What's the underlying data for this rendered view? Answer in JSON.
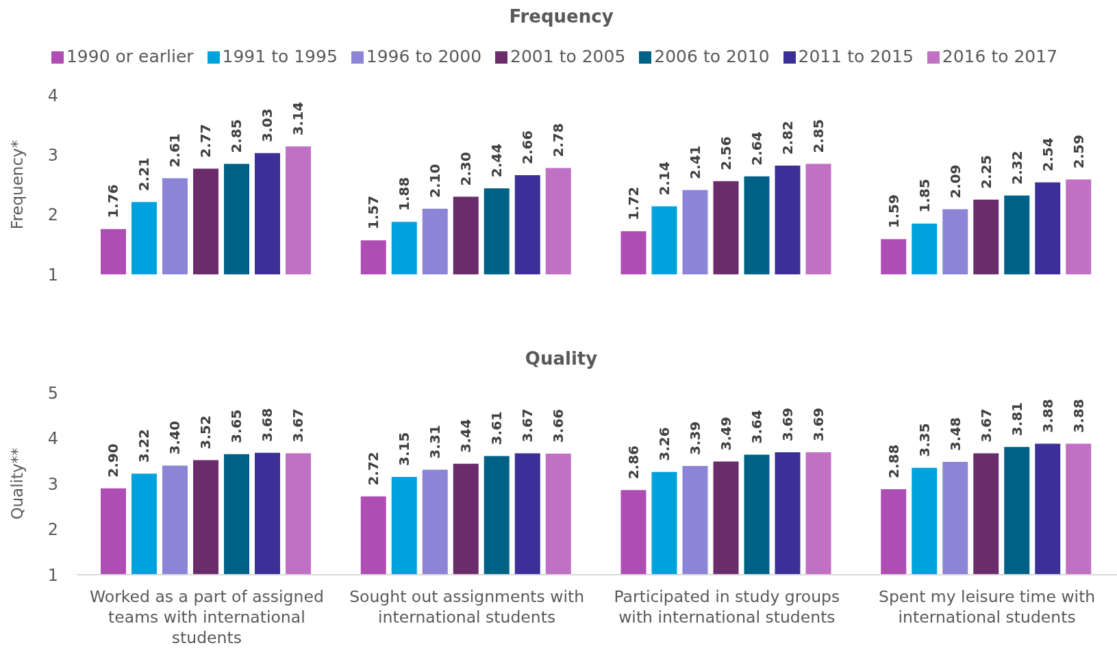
{
  "chart_data": [
    {
      "type": "bar",
      "title": "Frequency",
      "ylabel": "Frequency*",
      "categories": [
        null,
        null,
        null,
        null
      ],
      "series": [
        {
          "name": "1990 or earlier",
          "color": "#ae4db3",
          "values": [
            1.76,
            1.57,
            1.72,
            1.59
          ],
          "value_labels": [
            "1.76",
            "1.57",
            "1.72",
            "1.59"
          ]
        },
        {
          "name": "1991 to 1995",
          "color": "#00a2de",
          "values": [
            2.21,
            1.88,
            2.14,
            1.85
          ],
          "value_labels": [
            "2.21",
            "1.88",
            "2.14",
            "1.85"
          ]
        },
        {
          "name": "1996 to 2000",
          "color": "#8b84d7",
          "values": [
            2.61,
            2.1,
            2.41,
            2.09
          ],
          "value_labels": [
            "2.61",
            "2.10",
            "2.41",
            "2.09"
          ]
        },
        {
          "name": "2001 to 2005",
          "color": "#6a2c6b",
          "values": [
            2.77,
            2.3,
            2.56,
            2.25
          ],
          "value_labels": [
            "2.77",
            "2.30",
            "2.56",
            "2.25"
          ]
        },
        {
          "name": "2006 to 2010",
          "color": "#006186",
          "values": [
            2.85,
            2.44,
            2.64,
            2.32
          ],
          "value_labels": [
            "2.85",
            "2.44",
            "2.64",
            "2.32"
          ]
        },
        {
          "name": "2011 to 2015",
          "color": "#3c3098",
          "values": [
            3.03,
            2.66,
            2.82,
            2.54
          ],
          "value_labels": [
            "3.03",
            "2.66",
            "2.82",
            "2.54"
          ]
        },
        {
          "name": "2016 to 2017",
          "color": "#c071c4",
          "values": [
            3.14,
            2.78,
            2.85,
            2.59
          ],
          "value_labels": [
            "3.14",
            "2.78",
            "2.85",
            "2.59"
          ]
        }
      ],
      "ylim": [
        1,
        4
      ],
      "yticks": [
        1,
        2,
        3,
        4
      ],
      "legend": "top",
      "tick_labels": "y"
    },
    {
      "type": "bar",
      "title": "Quality",
      "ylabel": "Quality**",
      "categories": [
        "Worked as a part of assigned teams with international students",
        "Sought out assignments with international students",
        "Participated in study groups with international students",
        "Spent my leisure time with international students"
      ],
      "series": [
        {
          "color": "#ae4db3",
          "values": [
            2.9,
            2.72,
            2.86,
            2.88
          ],
          "value_labels": [
            "2.90",
            "2.72",
            "2.86",
            "2.88"
          ]
        },
        {
          "color": "#00a2de",
          "values": [
            3.22,
            3.15,
            3.26,
            3.35
          ],
          "value_labels": [
            "3.22",
            "3.15",
            "3.26",
            "3.35"
          ]
        },
        {
          "color": "#8b84d7",
          "values": [
            3.4,
            3.31,
            3.39,
            3.48
          ],
          "value_labels": [
            "3.40",
            "3.31",
            "3.39",
            "3.48"
          ]
        },
        {
          "color": "#6a2c6b",
          "values": [
            3.52,
            3.44,
            3.49,
            3.67
          ],
          "value_labels": [
            "3.52",
            "3.44",
            "3.49",
            "3.67"
          ]
        },
        {
          "color": "#006186",
          "values": [
            3.65,
            3.61,
            3.64,
            3.81
          ],
          "value_labels": [
            "3.65",
            "3.61",
            "3.64",
            "3.81"
          ]
        },
        {
          "color": "#3c3098",
          "values": [
            3.68,
            3.67,
            3.69,
            3.88
          ],
          "value_labels": [
            "3.68",
            "3.67",
            "3.69",
            "3.88"
          ]
        },
        {
          "color": "#c071c4",
          "values": [
            3.67,
            3.66,
            3.69,
            3.88
          ],
          "value_labels": [
            "3.67",
            "3.66",
            "3.69",
            "3.88"
          ]
        }
      ],
      "ylim": [
        1,
        5
      ],
      "yticks": [
        1,
        2,
        3,
        4,
        5
      ]
    }
  ]
}
